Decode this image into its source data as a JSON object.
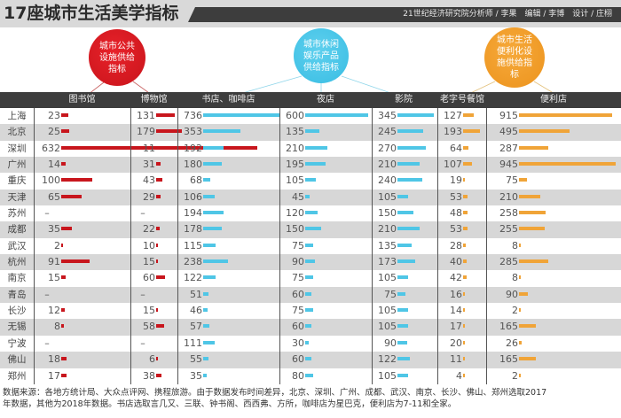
{
  "title": "17座城市生活美学指标",
  "credit": "21世纪经济研究院分析师 / 李果　编辑 / 李博　设计 / 庄栩",
  "categories": [
    {
      "label": "城市公共设施供给指标",
      "color": "#d7191f",
      "columns": [
        "图书馆",
        "博物馆"
      ]
    },
    {
      "label": "城市休闲娱乐产品供给指标",
      "color": "#4cc7e8",
      "columns": [
        "书店、咖啡店",
        "夜店",
        "影院"
      ]
    },
    {
      "label": "城市生活便利化设施供给指标",
      "color": "#f0a030",
      "columns": [
        "老字号餐馆",
        "便利店"
      ]
    }
  ],
  "circles": {
    "red": "城市公共设施供给指标",
    "blue": "城市休闲娱乐产品供给指标",
    "orange": "城市生活便利化设施供给指标"
  },
  "header": {
    "library": "图书馆",
    "museum": "博物馆",
    "bookstore": "书店、咖啡店",
    "nightclub": "夜店",
    "cinema": "影院",
    "oldbrand": "老字号餐馆",
    "convenience": "便利店"
  },
  "colors": {
    "red": "#c8161d",
    "blue": "#4fc6e6",
    "orange": "#f0a438",
    "header_bg": "#3d3d3d",
    "alt_row": "#d7d7d7"
  },
  "rows": [
    {
      "city": "上海",
      "library": "23",
      "museum": "131",
      "bookstore": "736",
      "nightclub": "600",
      "cinema": "345",
      "oldbrand": "127",
      "convenience": "915"
    },
    {
      "city": "北京",
      "library": "25",
      "museum": "179",
      "bookstore": "353",
      "nightclub": "135",
      "cinema": "245",
      "oldbrand": "193",
      "convenience": "495"
    },
    {
      "city": "深圳",
      "library": "632",
      "museum": "11",
      "bookstore": "192",
      "nightclub": "210",
      "cinema": "270",
      "oldbrand": "64",
      "convenience": "287"
    },
    {
      "city": "广州",
      "library": "14",
      "museum": "31",
      "bookstore": "180",
      "nightclub": "195",
      "cinema": "210",
      "oldbrand": "107",
      "convenience": "945"
    },
    {
      "city": "重庆",
      "library": "100",
      "museum": "43",
      "bookstore": "68",
      "nightclub": "105",
      "cinema": "240",
      "oldbrand": "19",
      "convenience": "75"
    },
    {
      "city": "天津",
      "library": "65",
      "museum": "29",
      "bookstore": "106",
      "nightclub": "45",
      "cinema": "105",
      "oldbrand": "53",
      "convenience": "210"
    },
    {
      "city": "苏州",
      "library": "–",
      "museum": "–",
      "bookstore": "194",
      "nightclub": "120",
      "cinema": "150",
      "oldbrand": "48",
      "convenience": "258"
    },
    {
      "city": "成都",
      "library": "35",
      "museum": "22",
      "bookstore": "178",
      "nightclub": "150",
      "cinema": "210",
      "oldbrand": "53",
      "convenience": "255"
    },
    {
      "city": "武汉",
      "library": "2",
      "museum": "10",
      "bookstore": "115",
      "nightclub": "75",
      "cinema": "135",
      "oldbrand": "28",
      "convenience": "8"
    },
    {
      "city": "杭州",
      "library": "91",
      "museum": "15",
      "bookstore": "238",
      "nightclub": "90",
      "cinema": "173",
      "oldbrand": "40",
      "convenience": "285"
    },
    {
      "city": "南京",
      "library": "15",
      "museum": "60",
      "bookstore": "122",
      "nightclub": "75",
      "cinema": "105",
      "oldbrand": "42",
      "convenience": "8"
    },
    {
      "city": "青岛",
      "library": "–",
      "museum": "–",
      "bookstore": "51",
      "nightclub": "60",
      "cinema": "75",
      "oldbrand": "16",
      "convenience": "90"
    },
    {
      "city": "长沙",
      "library": "12",
      "museum": "15",
      "bookstore": "46",
      "nightclub": "75",
      "cinema": "105",
      "oldbrand": "14",
      "convenience": "2"
    },
    {
      "city": "无锡",
      "library": "8",
      "museum": "58",
      "bookstore": "57",
      "nightclub": "60",
      "cinema": "105",
      "oldbrand": "17",
      "convenience": "165"
    },
    {
      "city": "宁波",
      "library": "–",
      "museum": "–",
      "bookstore": "111",
      "nightclub": "30",
      "cinema": "90",
      "oldbrand": "20",
      "convenience": "26"
    },
    {
      "city": "佛山",
      "library": "18",
      "museum": "6",
      "bookstore": "55",
      "nightclub": "60",
      "cinema": "122",
      "oldbrand": "11",
      "convenience": "165"
    },
    {
      "city": "郑州",
      "library": "17",
      "museum": "38",
      "bookstore": "35",
      "nightclub": "80",
      "cinema": "105",
      "oldbrand": "4",
      "convenience": "2"
    }
  ],
  "footer": {
    "line1": "数据来源：各地方统计局、大众点评网、携程旅游。由于数据发布时间差异，北京、深圳、广州、成都、武汉、南京、长沙、佛山、郑州选取2017",
    "line2": "年数据，其他为2018年数据。书店选取言几又、三联、钟书阁、西西弗、方所，咖啡店为星巴克，便利店为7-11和全家。"
  },
  "chart_data": {
    "type": "table",
    "title": "17座城市生活美学指标",
    "categories": [
      "上海",
      "北京",
      "深圳",
      "广州",
      "重庆",
      "天津",
      "苏州",
      "成都",
      "武汉",
      "杭州",
      "南京",
      "青岛",
      "长沙",
      "无锡",
      "宁波",
      "佛山",
      "郑州"
    ],
    "series": [
      {
        "name": "图书馆",
        "group": "城市公共设施供给指标",
        "values": [
          23,
          25,
          632,
          14,
          100,
          65,
          null,
          35,
          2,
          91,
          15,
          null,
          12,
          8,
          null,
          18,
          17
        ]
      },
      {
        "name": "博物馆",
        "group": "城市公共设施供给指标",
        "values": [
          131,
          179,
          11,
          31,
          43,
          29,
          null,
          22,
          10,
          15,
          60,
          null,
          15,
          58,
          null,
          6,
          38
        ]
      },
      {
        "name": "书店、咖啡店",
        "group": "城市休闲娱乐产品供给指标",
        "values": [
          736,
          353,
          192,
          180,
          68,
          106,
          194,
          178,
          115,
          238,
          122,
          51,
          46,
          57,
          111,
          55,
          35
        ]
      },
      {
        "name": "夜店",
        "group": "城市休闲娱乐产品供给指标",
        "values": [
          600,
          135,
          210,
          195,
          105,
          45,
          120,
          150,
          75,
          90,
          75,
          60,
          75,
          60,
          30,
          60,
          80
        ]
      },
      {
        "name": "影院",
        "group": "城市休闲娱乐产品供给指标",
        "values": [
          345,
          245,
          270,
          210,
          240,
          105,
          150,
          210,
          135,
          173,
          105,
          75,
          105,
          105,
          90,
          122,
          105
        ]
      },
      {
        "name": "老字号餐馆",
        "group": "城市生活便利化设施供给指标",
        "values": [
          127,
          193,
          64,
          107,
          19,
          53,
          48,
          53,
          28,
          40,
          42,
          16,
          14,
          17,
          20,
          11,
          4
        ]
      },
      {
        "name": "便利店",
        "group": "城市生活便利化设施供给指标",
        "values": [
          915,
          495,
          287,
          945,
          75,
          210,
          258,
          255,
          8,
          285,
          8,
          90,
          2,
          165,
          26,
          165,
          2
        ]
      }
    ],
    "notes": "数据来源：各地方统计局、大众点评网、携程旅游。由于数据发布时间差异，北京、深圳、广州、成都、武汉、南京、长沙、佛山、郑州选取2017年数据，其他为2018年数据。书店选取言几又、三联、钟书阁、西西弗、方所，咖啡店为星巴克，便利店为7-11和全家。"
  }
}
